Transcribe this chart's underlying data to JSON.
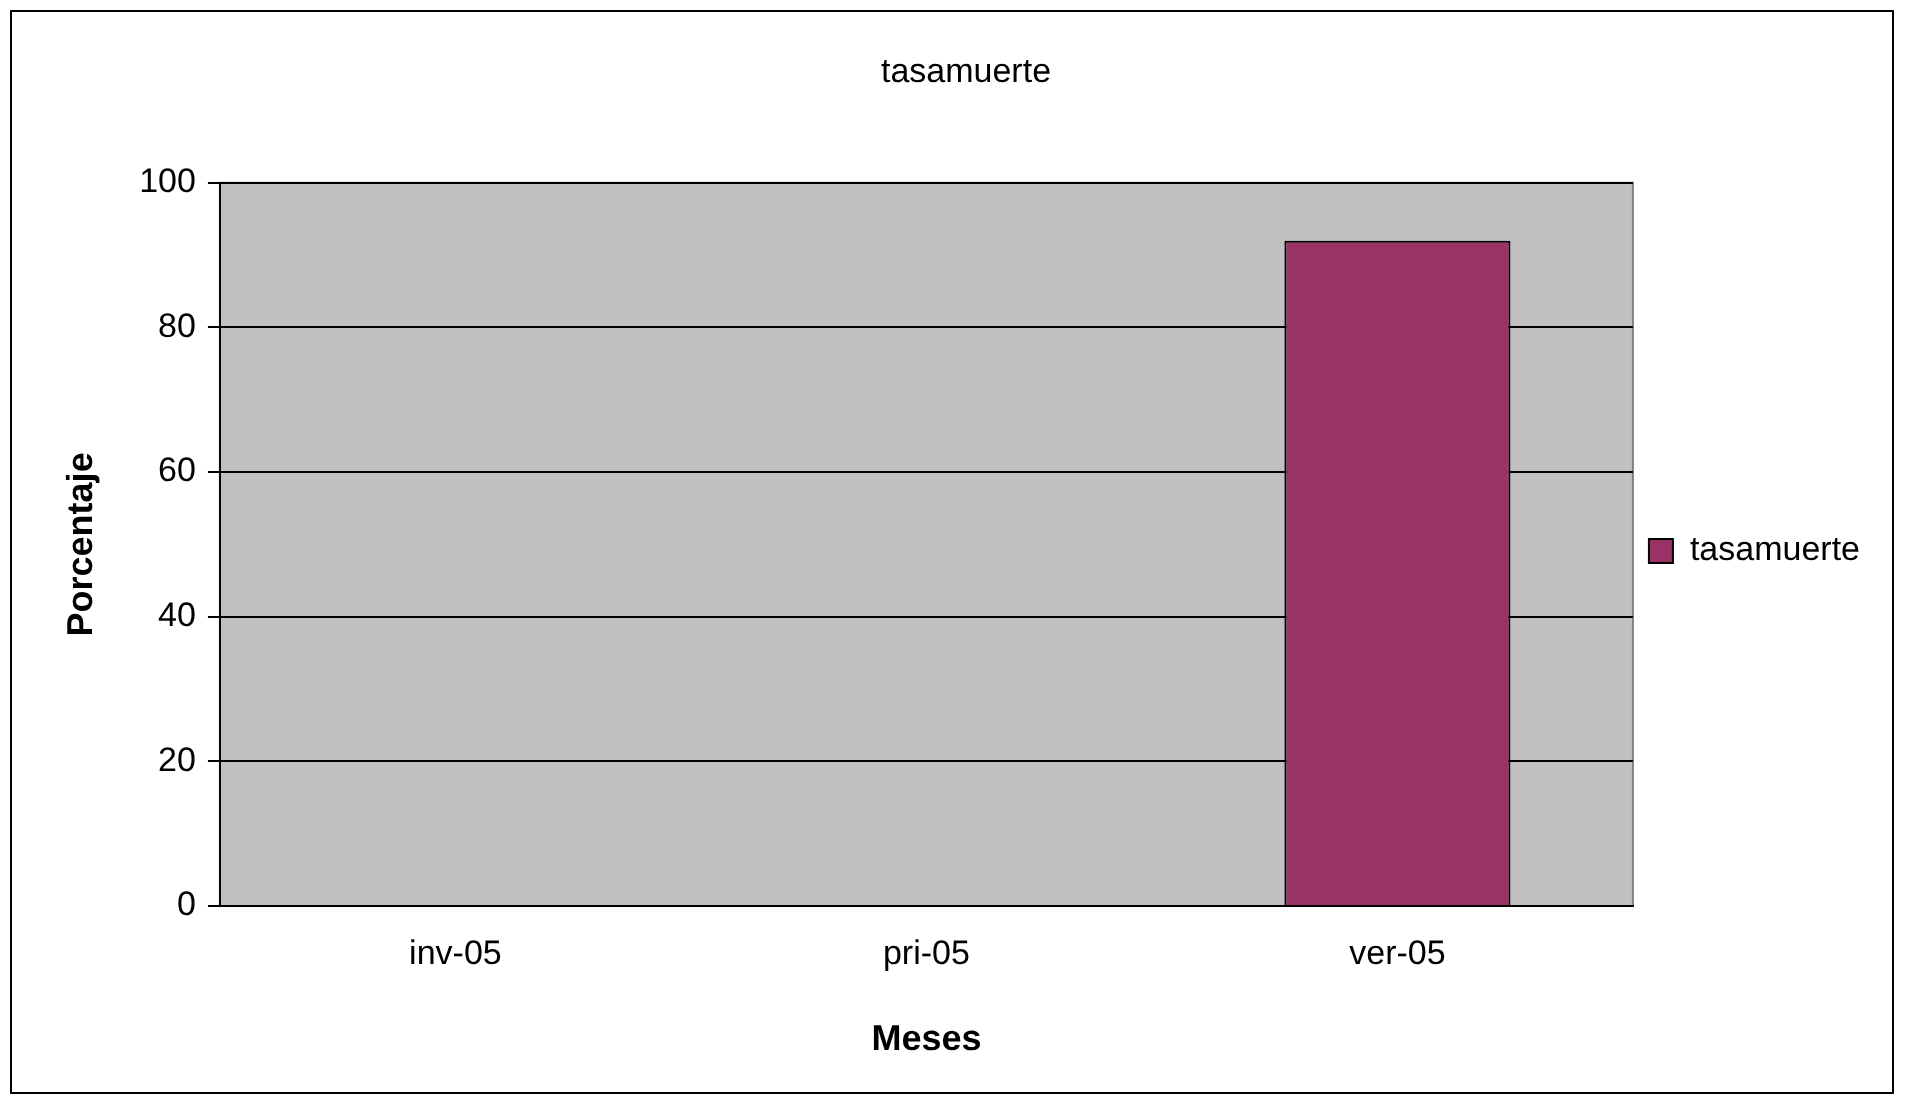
{
  "chart_data": {
    "type": "bar",
    "title": "tasamuerte",
    "xlabel": "Meses",
    "ylabel": "Porcentaje",
    "categories": [
      "inv-05",
      "pri-05",
      "ver-05"
    ],
    "series": [
      {
        "name": "tasamuerte",
        "color": "#993366",
        "values": [
          0,
          0,
          92
        ]
      }
    ],
    "ylim": [
      0,
      100
    ],
    "yticks": [
      0,
      20,
      40,
      60,
      80,
      100
    ],
    "grid": "y",
    "legend": "right"
  }
}
